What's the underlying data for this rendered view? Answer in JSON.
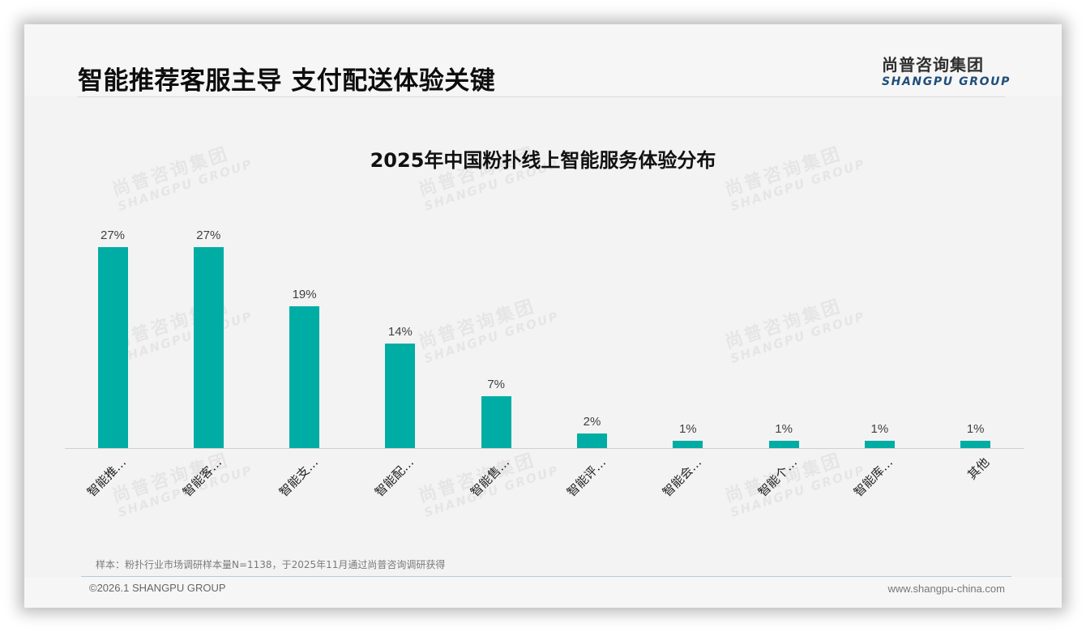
{
  "header": {
    "title": "智能推荐客服主导 支付配送体验关键",
    "logo_cn": "尚普咨询集团",
    "logo_en": "SHANGPU GROUP"
  },
  "watermark": {
    "cn": "尚普咨询集团",
    "en": "SHANGPU GROUP"
  },
  "chart": {
    "title": "2025年中国粉扑线上智能服务体验分布",
    "bar_color": "#00ada4",
    "bars": [
      {
        "label": "智能推…",
        "value": 27,
        "display": "27%"
      },
      {
        "label": "智能客…",
        "value": 27,
        "display": "27%"
      },
      {
        "label": "智能支…",
        "value": 19,
        "display": "19%"
      },
      {
        "label": "智能配…",
        "value": 14,
        "display": "14%"
      },
      {
        "label": "智能售…",
        "value": 7,
        "display": "7%"
      },
      {
        "label": "智能评…",
        "value": 2,
        "display": "2%"
      },
      {
        "label": "智能会…",
        "value": 1,
        "display": "1%"
      },
      {
        "label": "智能个…",
        "value": 1,
        "display": "1%"
      },
      {
        "label": "智能库…",
        "value": 1,
        "display": "1%"
      },
      {
        "label": "其他",
        "value": 1,
        "display": "1%"
      }
    ]
  },
  "chart_data": {
    "type": "bar",
    "title": "2025年中国粉扑线上智能服务体验分布",
    "categories": [
      "智能推…",
      "智能客…",
      "智能支…",
      "智能配…",
      "智能售…",
      "智能评…",
      "智能会…",
      "智能个…",
      "智能库…",
      "其他"
    ],
    "values": [
      27,
      27,
      19,
      14,
      7,
      2,
      1,
      1,
      1,
      1
    ],
    "value_format": "percent",
    "xlabel": "",
    "ylabel": "",
    "ylim": [
      0,
      30
    ],
    "grid": false,
    "legend": null,
    "data_labels": true,
    "color": "#00ada4"
  },
  "footer": {
    "source": "样本：粉扑行业市场调研样本量N=1138，于2025年11月通过尚普咨询调研获得",
    "copyright": "©2026.1 SHANGPU GROUP",
    "website": "www.shangpu-china.com"
  }
}
